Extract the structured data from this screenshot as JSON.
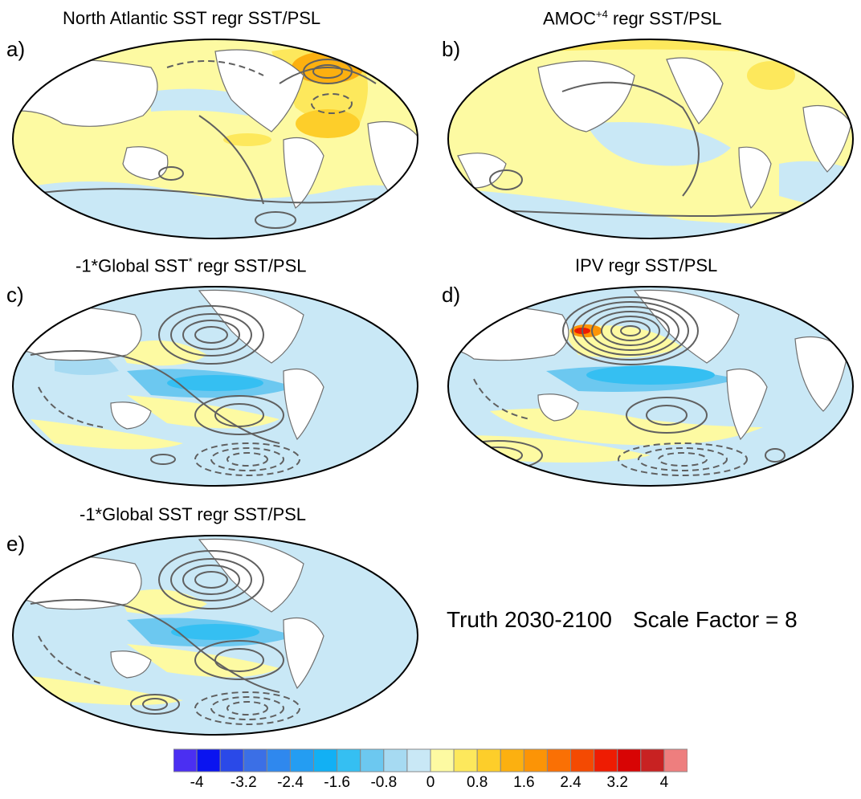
{
  "panels": [
    {
      "letter": "a)",
      "title_main": "North Atlantic SST regr SST/PSL",
      "title_pre": "",
      "title_sup": "",
      "title_post": ""
    },
    {
      "letter": "b)",
      "title_main": "",
      "title_pre": "AMOC",
      "title_sup": "+4",
      "title_post": " regr SST/PSL"
    },
    {
      "letter": "c)",
      "title_main": "",
      "title_pre": "-1*Global SST",
      "title_sup": "*",
      "title_post": " regr SST/PSL"
    },
    {
      "letter": "d)",
      "title_main": "IPV regr SST/PSL",
      "title_pre": "",
      "title_sup": "",
      "title_post": ""
    },
    {
      "letter": "e)",
      "title_main": "-1*Global SST regr SST/PSL",
      "title_pre": "",
      "title_sup": "",
      "title_post": ""
    }
  ],
  "note": {
    "period": "Truth 2030-2100",
    "scale": "Scale Factor = 8"
  },
  "colorbar": {
    "colors": [
      "#4b2ff2",
      "#0a14f0",
      "#2a49e8",
      "#3b6fe6",
      "#2f88ee",
      "#249df2",
      "#12b0f4",
      "#35bff2",
      "#6cc8f0",
      "#a6daf2",
      "#c9e8f6",
      "#fdfaa2",
      "#fde85c",
      "#fdce2a",
      "#fcb010",
      "#fc9406",
      "#fa7004",
      "#f44a02",
      "#ee1c02",
      "#d80404",
      "#c82222",
      "#ee7e7e"
    ],
    "labels": [
      "-4",
      "-3.2",
      "-2.4",
      "-1.6",
      "-0.8",
      "0",
      "0.8",
      "1.6",
      "2.4",
      "3.2",
      "4"
    ]
  }
}
